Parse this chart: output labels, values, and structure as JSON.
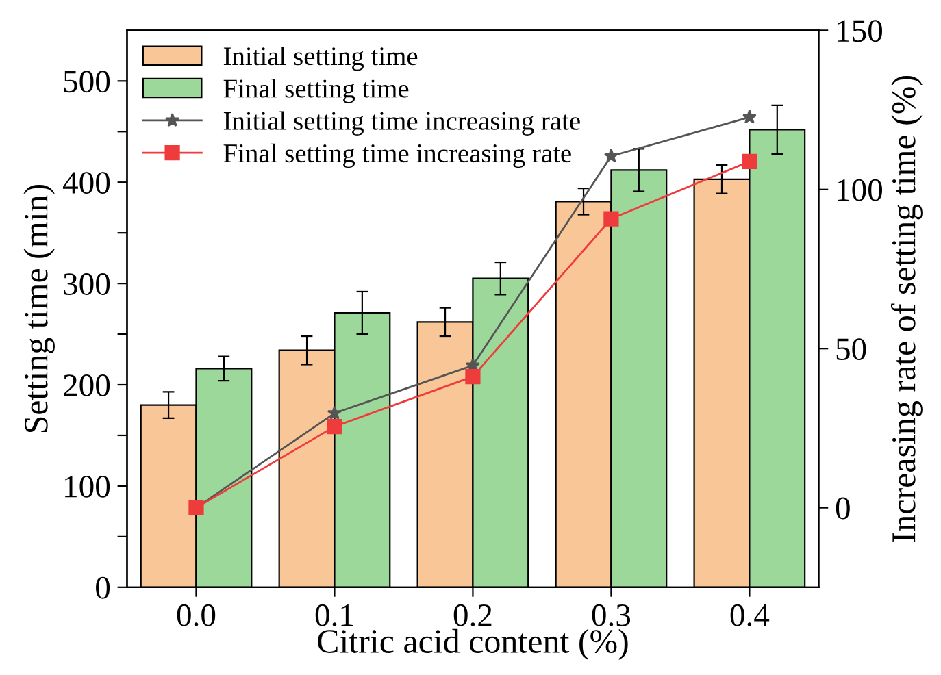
{
  "chart_data": {
    "type": "bar",
    "xlabel": "Citric acid content (%)",
    "ylabel": "Setting time (min)",
    "y2label": "Increasing rate of setting time (%)",
    "categories": [
      "0.0",
      "0.1",
      "0.2",
      "0.3",
      "0.4"
    ],
    "series": [
      {
        "name": "Initial setting time",
        "color": "#f9c697",
        "values": [
          180,
          234,
          262,
          381,
          403
        ],
        "errors": [
          13,
          14,
          14,
          13,
          14
        ]
      },
      {
        "name": "Final setting time",
        "color": "#9dd89b",
        "values": [
          216,
          271,
          305,
          412,
          452
        ],
        "errors": [
          12,
          21,
          16,
          21,
          24
        ]
      },
      {
        "name": "Initial setting time increasing rate",
        "type": "line",
        "axis": "y2",
        "color": "#555555",
        "marker": "star",
        "values": [
          0,
          29.7,
          44.7,
          110.5,
          122.7
        ]
      },
      {
        "name": "Final setting time increasing rate",
        "type": "line",
        "axis": "y2",
        "color": "#ee3b3b",
        "marker": "square",
        "values": [
          0,
          25.5,
          41.2,
          90.8,
          108.8
        ]
      }
    ],
    "ylim": [
      0,
      550
    ],
    "yticks": [
      0,
      {
        "value": 50,
        "label": null
      },
      100,
      {
        "value": 150,
        "label": null
      },
      200,
      {
        "value": 250,
        "label": null
      },
      300,
      {
        "value": 350,
        "label": null
      },
      400,
      {
        "value": 450,
        "label": null
      },
      500
    ],
    "y2lim": [
      -25,
      150
    ],
    "y2ticks": [
      0,
      50,
      100,
      150
    ],
    "grid": false,
    "legend": "top left"
  }
}
